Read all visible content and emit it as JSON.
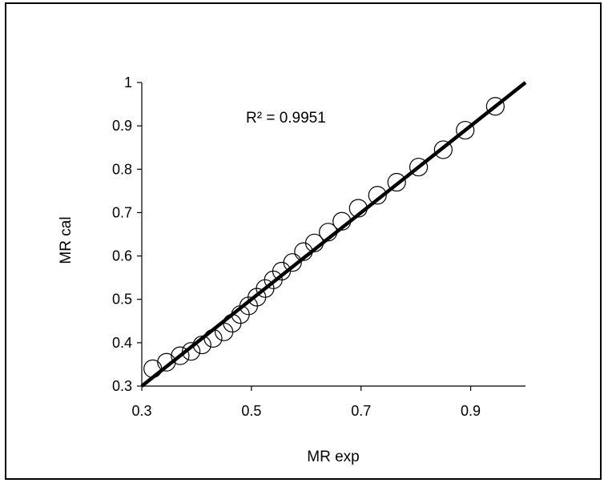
{
  "chart_data": {
    "type": "scatter",
    "xlabel": "MR exp",
    "ylabel": "MR cal",
    "annotation": "R² = 0.9951",
    "xlim": [
      0.3,
      1.0
    ],
    "ylim": [
      0.3,
      1.0
    ],
    "xticks": [
      "0.3",
      "0.5",
      "0.7",
      "0.9"
    ],
    "yticks": [
      "0.3",
      "0.4",
      "0.5",
      "0.6",
      "0.7",
      "0.8",
      "0.9",
      "1"
    ],
    "grid": false,
    "legend": "none",
    "trendline": {
      "x": [
        0.3,
        1.0
      ],
      "y": [
        0.3,
        1.0
      ]
    },
    "series": [
      {
        "marker": "open-circle",
        "x": [
          0.32,
          0.345,
          0.37,
          0.39,
          0.41,
          0.43,
          0.45,
          0.465,
          0.48,
          0.495,
          0.51,
          0.525,
          0.54,
          0.555,
          0.575,
          0.595,
          0.615,
          0.64,
          0.665,
          0.695,
          0.73,
          0.765,
          0.805,
          0.85,
          0.89,
          0.945
        ],
        "y": [
          0.34,
          0.355,
          0.37,
          0.38,
          0.395,
          0.41,
          0.425,
          0.445,
          0.465,
          0.485,
          0.505,
          0.525,
          0.545,
          0.565,
          0.585,
          0.61,
          0.63,
          0.655,
          0.68,
          0.71,
          0.74,
          0.77,
          0.805,
          0.845,
          0.89,
          0.945
        ]
      }
    ]
  }
}
